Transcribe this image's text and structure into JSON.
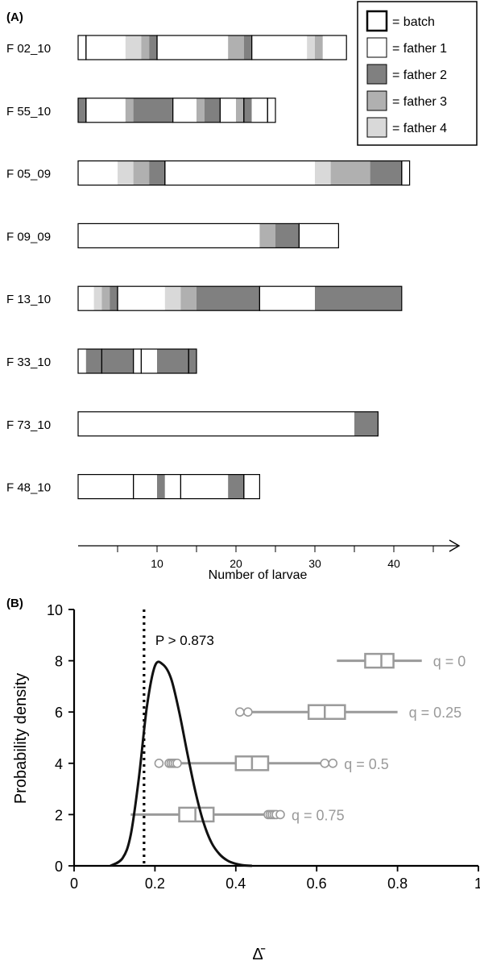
{
  "chart_data": [
    {
      "type": "bar",
      "subtype": "stacked-horizontal-segments",
      "panel_label": "(A)",
      "xlabel": "Number of larvae",
      "xlim": [
        0,
        46
      ],
      "xticks": [
        10,
        20,
        30,
        40
      ],
      "legend": {
        "placement": "top-right",
        "entries": [
          {
            "key": "batch",
            "label": "= batch",
            "color": "#ffffff",
            "border": "#000000"
          },
          {
            "key": "f1",
            "label": "= father 1",
            "color": "#ffffff"
          },
          {
            "key": "f2",
            "label": "= father 2",
            "color": "#808080"
          },
          {
            "key": "f3",
            "label": "= father 3",
            "color": "#b0b0b0"
          },
          {
            "key": "f4",
            "label": "= father 4",
            "color": "#d9d9d9"
          }
        ]
      },
      "families": [
        {
          "name": "F 02_10",
          "total": 34,
          "batches": [
            1,
            9,
            12,
            12
          ],
          "segments": [
            [
              "f1",
              1
            ],
            [
              "f1",
              5
            ],
            [
              "f4",
              2
            ],
            [
              "f3",
              1
            ],
            [
              "f2",
              1
            ],
            [
              "f1",
              9
            ],
            [
              "f3",
              2
            ],
            [
              "f2",
              1
            ],
            [
              "f1",
              7
            ],
            [
              "f4",
              1
            ],
            [
              "f3",
              1
            ],
            [
              "f1",
              3
            ]
          ]
        },
        {
          "name": "F 55_10",
          "total": 25,
          "batches": [
            1,
            11,
            6,
            3,
            3,
            1
          ],
          "segments": [
            [
              "f2",
              1
            ],
            [
              "f1",
              5
            ],
            [
              "f3",
              1
            ],
            [
              "f2",
              5
            ],
            [
              "f1",
              3
            ],
            [
              "f3",
              1
            ],
            [
              "f2",
              2
            ],
            [
              "f1",
              2
            ],
            [
              "f3",
              1
            ],
            [
              "f2",
              1
            ],
            [
              "f1",
              3
            ]
          ]
        },
        {
          "name": "F 05_09",
          "total": 42,
          "batches": [
            11,
            30,
            1
          ],
          "segments": [
            [
              "f1",
              5
            ],
            [
              "f4",
              2
            ],
            [
              "f3",
              2
            ],
            [
              "f2",
              2
            ],
            [
              "f1",
              19
            ],
            [
              "f4",
              2
            ],
            [
              "f3",
              5
            ],
            [
              "f2",
              4
            ],
            [
              "f1",
              1
            ]
          ]
        },
        {
          "name": "F 09_09",
          "total": 33,
          "batches": [
            28,
            5
          ],
          "segments": [
            [
              "f1",
              23
            ],
            [
              "f3",
              2
            ],
            [
              "f2",
              3
            ],
            [
              "f1",
              5
            ]
          ]
        },
        {
          "name": "F 13_10",
          "total": 41,
          "batches": [
            5,
            18,
            18
          ],
          "segments": [
            [
              "f1",
              2
            ],
            [
              "f4",
              1
            ],
            [
              "f3",
              1
            ],
            [
              "f2",
              1
            ],
            [
              "f1",
              6
            ],
            [
              "f4",
              2
            ],
            [
              "f3",
              2
            ],
            [
              "f2",
              8
            ],
            [
              "f1",
              7
            ],
            [
              "f2",
              11
            ]
          ]
        },
        {
          "name": "F 33_10",
          "total": 15,
          "batches": [
            3,
            4,
            1,
            6,
            1
          ],
          "segments": [
            [
              "f1",
              1
            ],
            [
              "f2",
              2
            ],
            [
              "f2",
              4
            ],
            [
              "f1",
              1
            ],
            [
              "f1",
              2
            ],
            [
              "f2",
              4
            ],
            [
              "f2",
              1
            ]
          ]
        },
        {
          "name": "F 73_10",
          "total": 38,
          "batches": [
            38
          ],
          "segments": [
            [
              "f1",
              35
            ],
            [
              "f2",
              3
            ]
          ]
        },
        {
          "name": "F 48_10",
          "total": 23,
          "batches": [
            7,
            6,
            8,
            2
          ],
          "segments": [
            [
              "f1",
              7
            ],
            [
              "f1",
              3
            ],
            [
              "f2",
              1
            ],
            [
              "f1",
              2
            ],
            [
              "f1",
              6
            ],
            [
              "f2",
              2
            ],
            [
              "f1",
              2
            ]
          ]
        }
      ]
    },
    {
      "type": "line",
      "subtype": "density-with-boxplots",
      "panel_label": "(B)",
      "ylabel": "Probability density",
      "xlabel": "Δ̄",
      "xlim": [
        0,
        1
      ],
      "ylim": [
        0,
        10
      ],
      "xticks": [
        "0",
        "0.2",
        "0.4",
        "0.6",
        "0.8",
        "1"
      ],
      "yticks": [
        "0",
        "2",
        "4",
        "6",
        "8",
        "10"
      ],
      "series": [
        {
          "x": [
            0.09,
            0.12,
            0.14,
            0.16,
            0.18,
            0.2,
            0.22,
            0.24,
            0.26,
            0.28,
            0.3,
            0.32,
            0.34,
            0.36,
            0.38,
            0.4,
            0.42,
            0.44
          ],
          "y": [
            0,
            0.3,
            1.2,
            3.4,
            6.2,
            7.8,
            7.85,
            7.3,
            6.0,
            4.4,
            2.9,
            1.7,
            0.9,
            0.45,
            0.2,
            0.08,
            0.02,
            0
          ]
        }
      ],
      "threshold": {
        "x": 0.173,
        "label": "P > 0.873"
      },
      "boxplots": [
        {
          "label": "q = 0",
          "y": 8,
          "whisker_low": 0.65,
          "q1": 0.72,
          "median": 0.76,
          "q3": 0.79,
          "whisker_high": 0.86,
          "outliers": []
        },
        {
          "label": "q = 0.25",
          "y": 6,
          "whisker_low": 0.43,
          "q1": 0.58,
          "median": 0.62,
          "q3": 0.67,
          "whisker_high": 0.8,
          "outliers": [
            0.41,
            0.43
          ]
        },
        {
          "label": "q = 0.5",
          "y": 4,
          "whisker_low": 0.26,
          "q1": 0.4,
          "median": 0.44,
          "q3": 0.48,
          "whisker_high": 0.61,
          "outliers": [
            0.21,
            0.235,
            0.24,
            0.245,
            0.25,
            0.255,
            0.62,
            0.64
          ]
        },
        {
          "label": "q = 0.75",
          "y": 2,
          "whisker_low": 0.14,
          "q1": 0.26,
          "median": 0.3,
          "q3": 0.345,
          "whisker_high": 0.48,
          "outliers": [
            0.48,
            0.485,
            0.49,
            0.495,
            0.5,
            0.51
          ]
        }
      ],
      "box_color": "#9a9a9a"
    }
  ]
}
